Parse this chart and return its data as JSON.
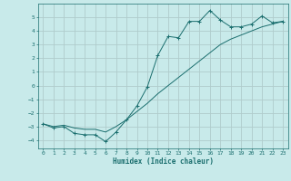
{
  "title": "",
  "xlabel": "Humidex (Indice chaleur)",
  "ylabel": "",
  "background_color": "#c8eaea",
  "grid_color": "#b0cccc",
  "line_color": "#1a6e6e",
  "xlim": [
    -0.5,
    23.5
  ],
  "ylim": [
    -4.6,
    6.0
  ],
  "xticks": [
    0,
    1,
    2,
    3,
    4,
    5,
    6,
    7,
    8,
    9,
    10,
    11,
    12,
    13,
    14,
    15,
    16,
    17,
    18,
    19,
    20,
    21,
    22,
    23
  ],
  "yticks": [
    -4,
    -3,
    -2,
    -1,
    0,
    1,
    2,
    3,
    4,
    5
  ],
  "line1_x": [
    0,
    1,
    2,
    3,
    4,
    5,
    6,
    7,
    8,
    9,
    10,
    11,
    12,
    13,
    14,
    15,
    16,
    17,
    18,
    19,
    20,
    21,
    22,
    23
  ],
  "line1_y": [
    -2.8,
    -3.1,
    -3.0,
    -3.5,
    -3.6,
    -3.6,
    -4.1,
    -3.4,
    -2.5,
    -1.5,
    -0.1,
    2.2,
    3.6,
    3.5,
    4.7,
    4.7,
    5.5,
    4.8,
    4.3,
    4.3,
    4.5,
    5.1,
    4.6,
    4.7
  ],
  "line2_x": [
    0,
    1,
    2,
    3,
    4,
    5,
    6,
    7,
    8,
    9,
    10,
    11,
    12,
    13,
    14,
    15,
    16,
    17,
    18,
    19,
    20,
    21,
    22,
    23
  ],
  "line2_y": [
    -2.8,
    -3.0,
    -2.9,
    -3.1,
    -3.2,
    -3.2,
    -3.4,
    -3.0,
    -2.5,
    -1.9,
    -1.3,
    -0.6,
    0.0,
    0.6,
    1.2,
    1.8,
    2.4,
    3.0,
    3.4,
    3.7,
    4.0,
    4.3,
    4.5,
    4.7
  ]
}
